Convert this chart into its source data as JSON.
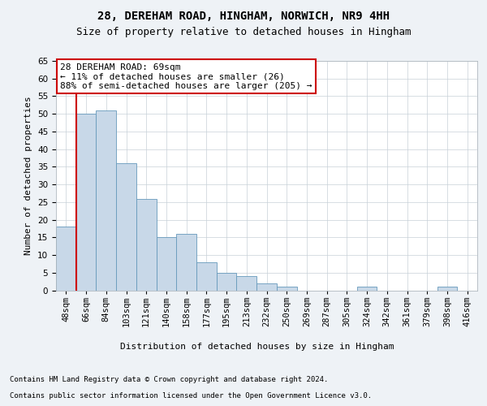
{
  "title1": "28, DEREHAM ROAD, HINGHAM, NORWICH, NR9 4HH",
  "title2": "Size of property relative to detached houses in Hingham",
  "xlabel": "Distribution of detached houses by size in Hingham",
  "ylabel": "Number of detached properties",
  "categories": [
    "48sqm",
    "66sqm",
    "84sqm",
    "103sqm",
    "121sqm",
    "140sqm",
    "158sqm",
    "177sqm",
    "195sqm",
    "213sqm",
    "232sqm",
    "250sqm",
    "269sqm",
    "287sqm",
    "305sqm",
    "324sqm",
    "342sqm",
    "361sqm",
    "379sqm",
    "398sqm",
    "416sqm"
  ],
  "values": [
    18,
    50,
    51,
    36,
    26,
    15,
    16,
    8,
    5,
    4,
    2,
    1,
    0,
    0,
    0,
    1,
    0,
    0,
    0,
    1,
    0
  ],
  "bar_color": "#c8d8e8",
  "bar_edge_color": "#6699bb",
  "highlight_line_color": "#cc0000",
  "highlight_bar_index": 1,
  "annotation_text": "28 DEREHAM ROAD: 69sqm\n← 11% of detached houses are smaller (26)\n88% of semi-detached houses are larger (205) →",
  "annotation_box_color": "#ffffff",
  "annotation_box_edge": "#cc0000",
  "ylim": [
    0,
    65
  ],
  "yticks": [
    0,
    5,
    10,
    15,
    20,
    25,
    30,
    35,
    40,
    45,
    50,
    55,
    60,
    65
  ],
  "footer1": "Contains HM Land Registry data © Crown copyright and database right 2024.",
  "footer2": "Contains public sector information licensed under the Open Government Licence v3.0.",
  "bg_color": "#eef2f6",
  "plot_bg_color": "#ffffff",
  "grid_color": "#c8d0d8",
  "title1_fontsize": 10,
  "title2_fontsize": 9,
  "xlabel_fontsize": 8,
  "ylabel_fontsize": 8,
  "tick_fontsize": 7.5,
  "footer_fontsize": 6.5
}
